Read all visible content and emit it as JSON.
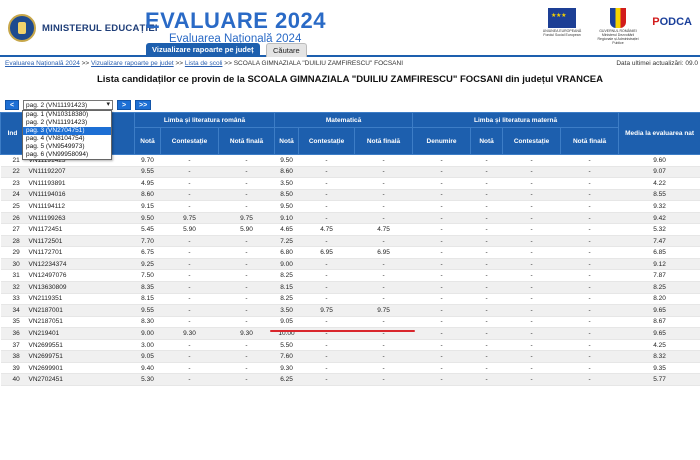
{
  "header": {
    "ministry": "MINISTERUL EDUCAȚIEI",
    "title": "EVALUARE 2024",
    "subtitle": "Evaluarea Națională 2024",
    "eu_caption": "UNIUNEA EUROPEANĂ Fondul Social European",
    "gov_caption": "GUVERNUL ROMÂNIEI Ministerul Dezvoltării Regionale și Administrației Publice",
    "podca_prefix": "P",
    "podca_rest": "ODCA"
  },
  "tabs": [
    {
      "label": "Vizualizare rapoarte pe județ",
      "active": true
    },
    {
      "label": "Căutare",
      "active": false
    }
  ],
  "breadcrumb": {
    "items": [
      "Evaluarea Națională 2024",
      "Vizualizare rapoarte pe judet",
      "Lista de școli"
    ],
    "sep": ">>",
    "current": "SCOALA GIMNAZIALA \"DUILIU ZAMFIRESCU\" FOCSANI"
  },
  "updated": "Data ultimei actualizări: 09.0",
  "page_heading": "Lista candidaților ce provin de la SCOALA GIMNAZIALA \"DUILIU ZAMFIRESCU\" FOCSANI din județul VRANCEA",
  "pager": {
    "prev": "<",
    "next": ">",
    "last": ">>",
    "selected": "pag. 2 (VN11191423)",
    "options": [
      "pag. 1 (VN10318380)",
      "pag. 2 (VN11191423)",
      "pag. 3 (VN2704751)",
      "pag. 4 (VN8104754)",
      "pag. 5 (VN9549973)",
      "pag. 6 (VN99958094)"
    ],
    "highlighted_index": 2
  },
  "table": {
    "col_index": "Ind",
    "groups": {
      "romana": "Limba și literatura română",
      "mate": "Matematică",
      "materna": "Limba și literatura maternă",
      "media": "Media la evaluarea nat"
    },
    "sub": {
      "nota": "Notă",
      "contestatie": "Contestație",
      "nota_finala": "Notă finală",
      "denumire": "Denumire"
    },
    "rows": [
      {
        "nr": "21",
        "cod": "VN11191423",
        "r_n": "9.70",
        "r_c": "-",
        "r_f": "-",
        "m_n": "9.50",
        "m_c": "-",
        "m_f": "-",
        "den": "-",
        "l_n": "-",
        "l_c": "-",
        "l_f": "-",
        "media": "9.60"
      },
      {
        "nr": "22",
        "cod": "VN11192207",
        "r_n": "9.55",
        "r_c": "-",
        "r_f": "-",
        "m_n": "8.60",
        "m_c": "-",
        "m_f": "-",
        "den": "-",
        "l_n": "-",
        "l_c": "-",
        "l_f": "-",
        "media": "9.07"
      },
      {
        "nr": "23",
        "cod": "VN11193891",
        "r_n": "4.95",
        "r_c": "-",
        "r_f": "-",
        "m_n": "3.50",
        "m_c": "-",
        "m_f": "-",
        "den": "-",
        "l_n": "-",
        "l_c": "-",
        "l_f": "-",
        "media": "4.22"
      },
      {
        "nr": "24",
        "cod": "VN11194016",
        "r_n": "8.60",
        "r_c": "-",
        "r_f": "-",
        "m_n": "8.50",
        "m_c": "-",
        "m_f": "-",
        "den": "-",
        "l_n": "-",
        "l_c": "-",
        "l_f": "-",
        "media": "8.55"
      },
      {
        "nr": "25",
        "cod": "VN11194112",
        "r_n": "9.15",
        "r_c": "-",
        "r_f": "-",
        "m_n": "9.50",
        "m_c": "-",
        "m_f": "-",
        "den": "-",
        "l_n": "-",
        "l_c": "-",
        "l_f": "-",
        "media": "9.32"
      },
      {
        "nr": "26",
        "cod": "VN11199263",
        "r_n": "9.50",
        "r_c": "9.75",
        "r_f": "9.75",
        "m_n": "9.10",
        "m_c": "-",
        "m_f": "-",
        "den": "-",
        "l_n": "-",
        "l_c": "-",
        "l_f": "-",
        "media": "9.42"
      },
      {
        "nr": "27",
        "cod": "VN1172451",
        "r_n": "5.45",
        "r_c": "5.90",
        "r_f": "5.90",
        "m_n": "4.65",
        "m_c": "4.75",
        "m_f": "4.75",
        "den": "-",
        "l_n": "-",
        "l_c": "-",
        "l_f": "-",
        "media": "5.32"
      },
      {
        "nr": "28",
        "cod": "VN1172501",
        "r_n": "7.70",
        "r_c": "-",
        "r_f": "-",
        "m_n": "7.25",
        "m_c": "-",
        "m_f": "-",
        "den": "-",
        "l_n": "-",
        "l_c": "-",
        "l_f": "-",
        "media": "7.47"
      },
      {
        "nr": "29",
        "cod": "VN1172701",
        "r_n": "6.75",
        "r_c": "-",
        "r_f": "-",
        "m_n": "6.80",
        "m_c": "6.95",
        "m_f": "6.95",
        "den": "-",
        "l_n": "-",
        "l_c": "-",
        "l_f": "-",
        "media": "6.85"
      },
      {
        "nr": "30",
        "cod": "VN12234374",
        "r_n": "9.25",
        "r_c": "-",
        "r_f": "-",
        "m_n": "9.00",
        "m_c": "-",
        "m_f": "-",
        "den": "-",
        "l_n": "-",
        "l_c": "-",
        "l_f": "-",
        "media": "9.12"
      },
      {
        "nr": "31",
        "cod": "VN12497076",
        "r_n": "7.50",
        "r_c": "-",
        "r_f": "-",
        "m_n": "8.25",
        "m_c": "-",
        "m_f": "-",
        "den": "-",
        "l_n": "-",
        "l_c": "-",
        "l_f": "-",
        "media": "7.87"
      },
      {
        "nr": "32",
        "cod": "VN13630809",
        "r_n": "8.35",
        "r_c": "-",
        "r_f": "-",
        "m_n": "8.15",
        "m_c": "-",
        "m_f": "-",
        "den": "-",
        "l_n": "-",
        "l_c": "-",
        "l_f": "-",
        "media": "8.25"
      },
      {
        "nr": "33",
        "cod": "VN2119351",
        "r_n": "8.15",
        "r_c": "-",
        "r_f": "-",
        "m_n": "8.25",
        "m_c": "-",
        "m_f": "-",
        "den": "-",
        "l_n": "-",
        "l_c": "-",
        "l_f": "-",
        "media": "8.20"
      },
      {
        "nr": "34",
        "cod": "VN2187001",
        "r_n": "9.55",
        "r_c": "-",
        "r_f": "-",
        "m_n": "3.50",
        "m_c": "9.75",
        "m_f": "9.75",
        "den": "-",
        "l_n": "-",
        "l_c": "-",
        "l_f": "-",
        "media": "9.65"
      },
      {
        "nr": "35",
        "cod": "VN2187051",
        "r_n": "8.30",
        "r_c": "-",
        "r_f": "-",
        "m_n": "9.05",
        "m_c": "-",
        "m_f": "-",
        "den": "-",
        "l_n": "-",
        "l_c": "-",
        "l_f": "-",
        "media": "8.67"
      },
      {
        "nr": "36",
        "cod": "VN219401",
        "r_n": "9.00",
        "r_c": "9.30",
        "r_f": "9.30",
        "m_n": "10.00",
        "m_c": "-",
        "m_f": "-",
        "den": "-",
        "l_n": "-",
        "l_c": "-",
        "l_f": "-",
        "media": "9.65"
      },
      {
        "nr": "37",
        "cod": "VN2699551",
        "r_n": "3.00",
        "r_c": "-",
        "r_f": "-",
        "m_n": "5.50",
        "m_c": "-",
        "m_f": "-",
        "den": "-",
        "l_n": "-",
        "l_c": "-",
        "l_f": "-",
        "media": "4.25"
      },
      {
        "nr": "38",
        "cod": "VN2699751",
        "r_n": "9.05",
        "r_c": "-",
        "r_f": "-",
        "m_n": "7.60",
        "m_c": "-",
        "m_f": "-",
        "den": "-",
        "l_n": "-",
        "l_c": "-",
        "l_f": "-",
        "media": "8.32"
      },
      {
        "nr": "39",
        "cod": "VN2699901",
        "r_n": "9.40",
        "r_c": "-",
        "r_f": "-",
        "m_n": "9.30",
        "m_c": "-",
        "m_f": "-",
        "den": "-",
        "l_n": "-",
        "l_c": "-",
        "l_f": "-",
        "media": "9.35"
      },
      {
        "nr": "40",
        "cod": "VN2702451",
        "r_n": "5.30",
        "r_c": "-",
        "r_f": "-",
        "m_n": "6.25",
        "m_c": "-",
        "m_f": "-",
        "den": "-",
        "l_n": "-",
        "l_c": "-",
        "l_f": "-",
        "media": "5.77"
      }
    ]
  },
  "colors": {
    "header_blue": "#1d5fae",
    "title_blue": "#2a6ac6",
    "highlight_red": "#d9262c"
  }
}
